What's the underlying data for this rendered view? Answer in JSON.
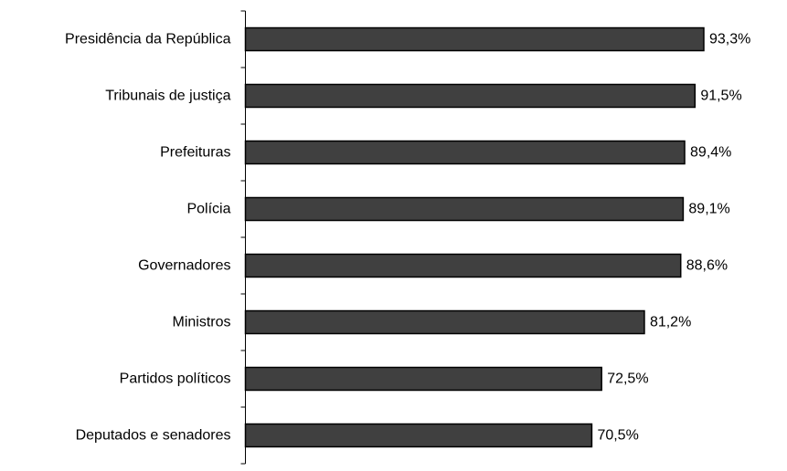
{
  "chart_data": {
    "type": "bar",
    "orientation": "horizontal",
    "categories": [
      "Presidência da República",
      "Tribunais de justiça",
      "Prefeituras",
      "Polícia",
      "Governadores",
      "Ministros",
      "Partidos políticos",
      "Deputados e senadores"
    ],
    "values": [
      93.3,
      91.5,
      89.4,
      89.1,
      88.6,
      81.2,
      72.5,
      70.5
    ],
    "value_labels": [
      "93,3%",
      "91,5%",
      "89,4%",
      "89,1%",
      "88,6%",
      "81,2%",
      "72,5%",
      "70,5%"
    ],
    "value_unit": "%",
    "title": "",
    "xlabel": "",
    "ylabel": "",
    "xlim": [
      0,
      100
    ],
    "grid": false,
    "legend": "none",
    "bar_color": "#404040",
    "bar_border_color": "#000000"
  }
}
